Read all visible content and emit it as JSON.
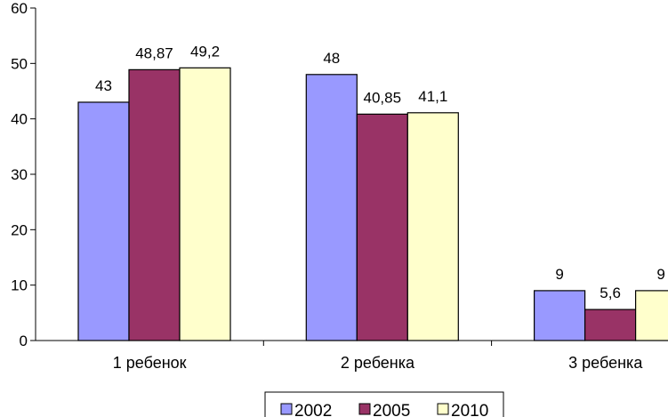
{
  "chart_data": {
    "type": "bar",
    "categories": [
      "1 ребенок",
      "2 ребенка",
      "3 ребенка"
    ],
    "series": [
      {
        "name": "2002",
        "values": [
          43,
          48,
          9
        ],
        "labels": [
          "43",
          "48",
          "9"
        ],
        "color": "#9999ff"
      },
      {
        "name": "2005",
        "values": [
          48.87,
          40.85,
          5.6
        ],
        "labels": [
          "48,87",
          "40,85",
          "5,6"
        ],
        "color": "#993366"
      },
      {
        "name": "2010",
        "values": [
          49.2,
          41.1,
          9
        ],
        "labels": [
          "49,2",
          "41,1",
          "9"
        ],
        "color": "#ffffcc"
      }
    ],
    "ylim": [
      0,
      60
    ],
    "yticks": [
      0,
      10,
      20,
      30,
      40,
      50,
      60
    ],
    "grid": false,
    "legend": "bottom"
  }
}
